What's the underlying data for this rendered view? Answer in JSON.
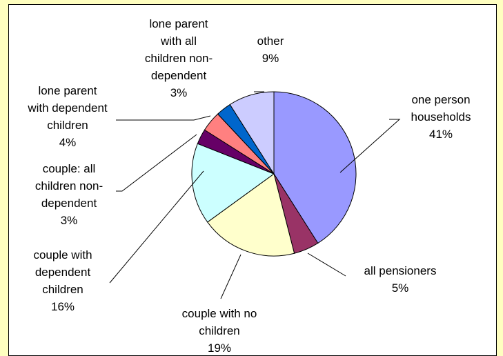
{
  "chart_data": {
    "type": "pie",
    "title": "",
    "slices": [
      {
        "label_lines": [
          "one person",
          "households",
          "41%"
        ],
        "value": 41,
        "color": "#9999ff"
      },
      {
        "label_lines": [
          "all pensioners",
          "5%"
        ],
        "value": 5,
        "color": "#993366"
      },
      {
        "label_lines": [
          "couple with no",
          "children",
          "19%"
        ],
        "value": 19,
        "color": "#ffffcc"
      },
      {
        "label_lines": [
          "couple with",
          "dependent",
          "children",
          "16%"
        ],
        "value": 16,
        "color": "#ccffff"
      },
      {
        "label_lines": [
          "couple: all",
          "children non-",
          "dependent",
          "3%"
        ],
        "value": 3,
        "color": "#660066"
      },
      {
        "label_lines": [
          "lone parent",
          "with dependent",
          "children",
          "4%"
        ],
        "value": 4,
        "color": "#ff8080"
      },
      {
        "label_lines": [
          "lone parent",
          "with all",
          "children non-",
          "dependent",
          "3%"
        ],
        "value": 3,
        "color": "#0066cc"
      },
      {
        "label_lines": [
          "other",
          "9%"
        ],
        "value": 9,
        "color": "#ccccff"
      }
    ],
    "start_angle_deg": 0,
    "direction": "clockwise",
    "legend": "none"
  },
  "colors": {
    "page_background": "#ffffc0",
    "chart_background": "#ffffff",
    "border": "#000000",
    "leader_line": "#000000"
  }
}
